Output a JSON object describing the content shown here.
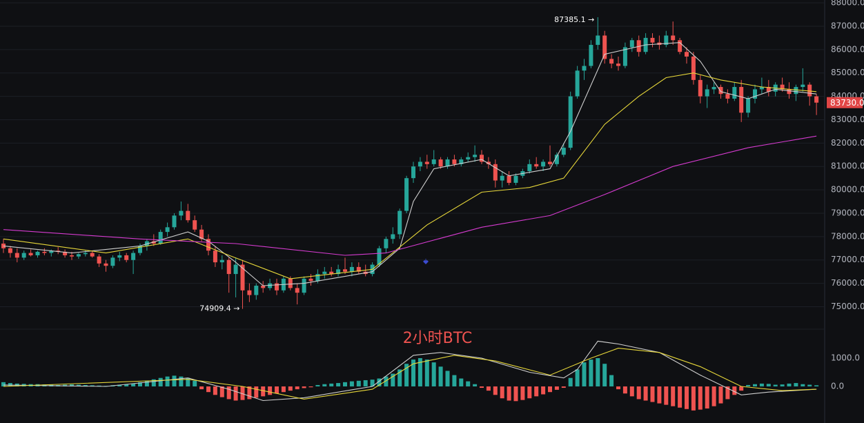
{
  "chart_data": [
    {
      "type": "candlestick",
      "up_color": "#26a69a",
      "down_color": "#ef5350",
      "ohlc": [
        [
          77700,
          77900,
          77300,
          77500
        ],
        [
          77500,
          77600,
          77100,
          77300
        ],
        [
          77300,
          77500,
          76900,
          77100
        ],
        [
          77100,
          77400,
          77000,
          77300
        ],
        [
          77300,
          77450,
          77150,
          77200
        ],
        [
          77200,
          77400,
          77100,
          77350
        ],
        [
          77350,
          77500,
          77200,
          77300
        ],
        [
          77300,
          77450,
          77150,
          77400
        ],
        [
          77400,
          77550,
          77250,
          77350
        ],
        [
          77350,
          77450,
          77100,
          77200
        ],
        [
          77200,
          77350,
          77000,
          77150
        ],
        [
          77150,
          77300,
          77050,
          77250
        ],
        [
          77250,
          77400,
          77150,
          77300
        ],
        [
          77300,
          77400,
          77100,
          77150
        ],
        [
          77150,
          77250,
          76700,
          76850
        ],
        [
          76850,
          77000,
          76500,
          76750
        ],
        [
          76750,
          77200,
          76650,
          77100
        ],
        [
          77100,
          77350,
          76950,
          77200
        ],
        [
          77200,
          77300,
          76900,
          77000
        ],
        [
          77000,
          77400,
          76400,
          77300
        ],
        [
          77300,
          77700,
          77200,
          77600
        ],
        [
          77600,
          77900,
          77400,
          77800
        ],
        [
          77800,
          78100,
          77600,
          77700
        ],
        [
          77700,
          78300,
          77650,
          78200
        ],
        [
          78200,
          78600,
          78000,
          78400
        ],
        [
          78400,
          79000,
          78300,
          78900
        ],
        [
          78900,
          79500,
          78700,
          79100
        ],
        [
          79100,
          79400,
          78600,
          78700
        ],
        [
          78700,
          78900,
          78200,
          78300
        ],
        [
          78300,
          78500,
          77800,
          77900
        ],
        [
          77900,
          78100,
          77200,
          77400
        ],
        [
          77400,
          77600,
          76700,
          76900
        ],
        [
          76900,
          77200,
          76600,
          77000
        ],
        [
          77000,
          77100,
          75600,
          76400
        ],
        [
          76400,
          77100,
          75400,
          76800
        ],
        [
          76800,
          77000,
          74909.4,
          75700
        ],
        [
          75700,
          76000,
          75200,
          75500
        ],
        [
          75500,
          76000,
          75300,
          75900
        ],
        [
          75900,
          76100,
          75600,
          75800
        ],
        [
          75800,
          76200,
          75700,
          76000
        ],
        [
          76000,
          76200,
          75500,
          75700
        ],
        [
          75700,
          76300,
          75600,
          76200
        ],
        [
          76200,
          76300,
          75700,
          75800
        ],
        [
          75800,
          76000,
          75100,
          75600
        ],
        [
          75600,
          76300,
          75500,
          76200
        ],
        [
          76200,
          76400,
          75900,
          76100
        ],
        [
          76100,
          76600,
          76000,
          76400
        ],
        [
          76400,
          76700,
          76200,
          76500
        ],
        [
          76500,
          76700,
          76300,
          76400
        ],
        [
          76400,
          76800,
          76300,
          76600
        ],
        [
          76600,
          77100,
          76400,
          76500
        ],
        [
          76500,
          76900,
          76300,
          76700
        ],
        [
          76700,
          76900,
          76400,
          76500
        ],
        [
          76500,
          76800,
          76300,
          76400
        ],
        [
          76400,
          76900,
          76300,
          76800
        ],
        [
          76800,
          77600,
          76700,
          77500
        ],
        [
          77500,
          78000,
          77300,
          77900
        ],
        [
          77900,
          78400,
          77700,
          78100
        ],
        [
          78100,
          79200,
          77900,
          79100
        ],
        [
          79100,
          80600,
          79000,
          80500
        ],
        [
          80500,
          81200,
          80300,
          81000
        ],
        [
          81000,
          81400,
          80800,
          81200
        ],
        [
          81200,
          81500,
          80900,
          81100
        ],
        [
          81100,
          81700,
          81000,
          81300
        ],
        [
          81300,
          81400,
          80900,
          81000
        ],
        [
          81000,
          81400,
          80900,
          81300
        ],
        [
          81300,
          81500,
          81000,
          81100
        ],
        [
          81100,
          81400,
          81000,
          81300
        ],
        [
          81300,
          81600,
          81200,
          81400
        ],
        [
          81400,
          81900,
          81200,
          81500
        ],
        [
          81500,
          81700,
          81100,
          81200
        ],
        [
          81200,
          81400,
          80900,
          81100
        ],
        [
          81100,
          81300,
          80100,
          80400
        ],
        [
          80400,
          80800,
          80100,
          80600
        ],
        [
          80600,
          80800,
          80200,
          80300
        ],
        [
          80300,
          80700,
          80200,
          80600
        ],
        [
          80600,
          80900,
          80500,
          80800
        ],
        [
          80800,
          81300,
          80700,
          81100
        ],
        [
          81100,
          81400,
          80900,
          81000
        ],
        [
          81000,
          81300,
          80800,
          81200
        ],
        [
          81200,
          81900,
          81000,
          81100
        ],
        [
          81100,
          81600,
          81000,
          81500
        ],
        [
          81500,
          82000,
          81400,
          81800
        ],
        [
          81800,
          84200,
          81700,
          84000
        ],
        [
          84000,
          85300,
          83900,
          85100
        ],
        [
          85100,
          85600,
          84700,
          85300
        ],
        [
          85300,
          86400,
          85200,
          86200
        ],
        [
          86200,
          87385.1,
          86000,
          86600
        ],
        [
          86600,
          86800,
          85400,
          85600
        ],
        [
          85600,
          85800,
          85200,
          85400
        ],
        [
          85400,
          85700,
          85100,
          85300
        ],
        [
          85300,
          86300,
          85200,
          86100
        ],
        [
          86100,
          86500,
          85900,
          86400
        ],
        [
          86400,
          86600,
          85700,
          85900
        ],
        [
          85900,
          86700,
          85800,
          86500
        ],
        [
          86500,
          86700,
          86100,
          86300
        ],
        [
          86300,
          86600,
          86000,
          86200
        ],
        [
          86200,
          86800,
          86100,
          86600
        ],
        [
          86600,
          87200,
          86200,
          86400
        ],
        [
          86400,
          86500,
          85800,
          85900
        ],
        [
          85900,
          86100,
          85400,
          85700
        ],
        [
          85700,
          85900,
          84500,
          84700
        ],
        [
          84700,
          84900,
          83700,
          84000
        ],
        [
          84000,
          84500,
          83500,
          84300
        ],
        [
          84300,
          84600,
          84100,
          84400
        ],
        [
          84400,
          84500,
          83900,
          84100
        ],
        [
          84100,
          84300,
          83700,
          83900
        ],
        [
          83900,
          84600,
          83800,
          84400
        ],
        [
          84400,
          84700,
          82900,
          83300
        ],
        [
          83300,
          84000,
          83100,
          83900
        ],
        [
          83900,
          84500,
          83700,
          84300
        ],
        [
          84300,
          84800,
          84100,
          84400
        ],
        [
          84400,
          84700,
          84000,
          84200
        ],
        [
          84200,
          84600,
          84000,
          84500
        ],
        [
          84500,
          84800,
          84200,
          84300
        ],
        [
          84300,
          84600,
          83900,
          84100
        ],
        [
          84100,
          84500,
          83800,
          84400
        ],
        [
          84400,
          85200,
          84200,
          84500
        ],
        [
          84500,
          84600,
          83600,
          84000
        ],
        [
          84000,
          84100,
          83200,
          83730
        ]
      ],
      "lines": [
        {
          "color": "#d0d0d0",
          "x": [
            0,
            10,
            20,
            27,
            30,
            34,
            38,
            44,
            54,
            58,
            60,
            63,
            70,
            74,
            80,
            83,
            88,
            94,
            99,
            102,
            105,
            109,
            113,
            119
          ],
          "values": [
            77600,
            77300,
            77600,
            78200,
            77800,
            76900,
            75900,
            76000,
            76500,
            77500,
            79500,
            80900,
            81300,
            80600,
            80900,
            82500,
            85800,
            86200,
            86300,
            85500,
            84200,
            83900,
            84300,
            84100
          ]
        },
        {
          "color": "#e8d83a",
          "x": [
            0,
            15,
            27,
            33,
            42,
            54,
            62,
            70,
            77,
            82,
            88,
            93,
            97,
            101,
            105,
            111,
            119
          ],
          "values": [
            77900,
            77300,
            77900,
            77200,
            76200,
            76600,
            78500,
            79900,
            80100,
            80500,
            82800,
            84000,
            84800,
            85000,
            84700,
            84400,
            84200
          ]
        },
        {
          "color": "#d63bd0",
          "x": [
            0,
            20,
            34,
            50,
            56,
            70,
            80,
            88,
            98,
            109,
            119
          ],
          "values": [
            78300,
            77900,
            77700,
            77200,
            77300,
            78400,
            78900,
            79800,
            81000,
            81800,
            82300
          ]
        }
      ],
      "ylim": [
        74100,
        88120
      ],
      "yticks": [
        {
          "value": 75000,
          "label": "75000.0"
        },
        {
          "value": 76000,
          "label": "76000.0"
        },
        {
          "value": 77000,
          "label": "77000.0"
        },
        {
          "value": 78000,
          "label": "78000.0"
        },
        {
          "value": 79000,
          "label": "79000.0"
        },
        {
          "value": 80000,
          "label": "80000.0"
        },
        {
          "value": 81000,
          "label": "81000.0"
        },
        {
          "value": 82000,
          "label": "82000.0"
        },
        {
          "value": 83000,
          "label": "83000.0"
        },
        {
          "value": 84000,
          "label": "84000.0"
        },
        {
          "value": 85000,
          "label": "85000.0"
        },
        {
          "value": 86000,
          "label": "86000.0"
        },
        {
          "value": 87000,
          "label": "87000.0"
        },
        {
          "value": 88000,
          "label": "88000.0"
        }
      ],
      "grid": true,
      "high_label": "87385.1 →",
      "low_label": "74909.4 →",
      "last_label": "83730.0",
      "last_color": "#e04545",
      "watermark": "2小时BTC"
    },
    {
      "type": "macd",
      "up_color": "#26a69a",
      "down_color": "#ef5350",
      "histogram": [
        150,
        120,
        100,
        90,
        80,
        80,
        70,
        60,
        50,
        60,
        70,
        60,
        50,
        40,
        30,
        20,
        40,
        60,
        80,
        100,
        150,
        200,
        250,
        300,
        350,
        380,
        350,
        300,
        200,
        -100,
        -200,
        -300,
        -380,
        -450,
        -500,
        -480,
        -450,
        -400,
        -350,
        -300,
        -250,
        -200,
        -150,
        -100,
        -60,
        -30,
        50,
        80,
        100,
        120,
        150,
        180,
        200,
        220,
        240,
        280,
        350,
        450,
        600,
        800,
        950,
        1000,
        950,
        850,
        700,
        550,
        400,
        280,
        180,
        80,
        -50,
        -150,
        -300,
        -420,
        -500,
        -520,
        -480,
        -420,
        -350,
        -280,
        -200,
        -120,
        -50,
        300,
        600,
        850,
        950,
        1000,
        800,
        400,
        -100,
        -250,
        -350,
        -450,
        -500,
        -550,
        -600,
        -650,
        -700,
        -750,
        -800,
        -850,
        -820,
        -780,
        -700,
        -600,
        -450,
        -300,
        -150,
        50,
        80,
        100,
        90,
        60,
        70,
        100,
        120,
        80,
        60,
        40
      ],
      "lines": [
        {
          "color": "#d0d0d0",
          "x": [
            0,
            15,
            27,
            33,
            38,
            44,
            54,
            60,
            64,
            70,
            77,
            82,
            84,
            87,
            90,
            96,
            102,
            108,
            112,
            119
          ],
          "values": [
            50,
            0,
            300,
            -100,
            -500,
            -400,
            0,
            1100,
            1200,
            1000,
            500,
            300,
            600,
            1600,
            1500,
            1200,
            400,
            -300,
            -200,
            -100
          ]
        },
        {
          "color": "#e8d83a",
          "x": [
            0,
            27,
            35,
            44,
            54,
            60,
            66,
            72,
            80,
            86,
            90,
            96,
            102,
            108,
            114,
            119
          ],
          "values": [
            0,
            250,
            0,
            -450,
            -100,
            800,
            1100,
            900,
            400,
            1000,
            1350,
            1200,
            700,
            0,
            -150,
            -100
          ]
        }
      ],
      "ylim": [
        -1293,
        2000
      ],
      "yticks": [
        {
          "value": 1000,
          "label": "1000.0"
        },
        {
          "value": 0,
          "label": "0.0"
        }
      ]
    }
  ]
}
